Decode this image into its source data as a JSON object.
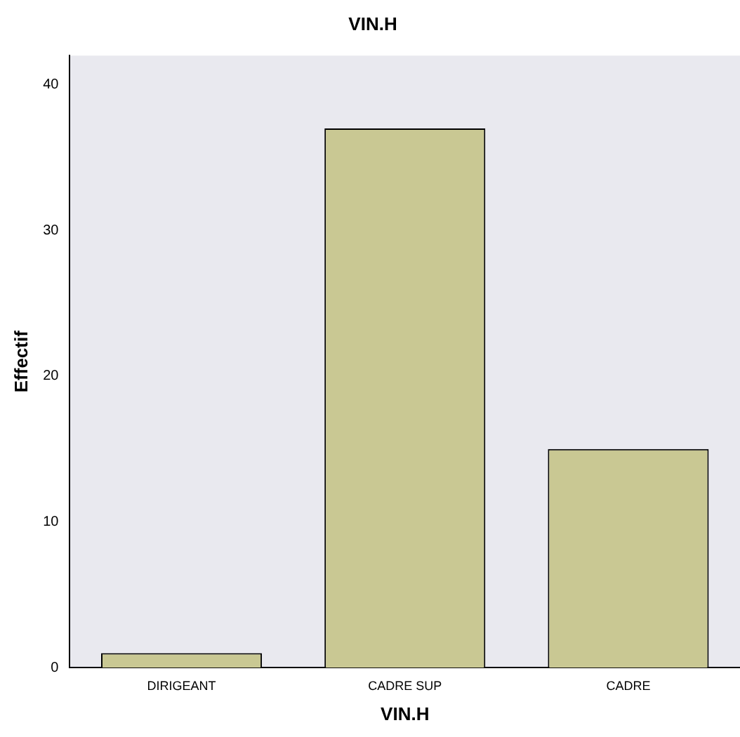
{
  "chart_data": {
    "type": "bar",
    "title": "VIN.H",
    "xlabel": "VIN.H",
    "ylabel": "Effectif",
    "categories": [
      "DIRIGEANT",
      "CADRE SUP",
      "CADRE"
    ],
    "values": [
      1,
      37,
      15
    ],
    "color": "#c9c893",
    "ylim": [
      0,
      42
    ],
    "yticks": [
      0,
      10,
      20,
      30,
      40
    ],
    "grid": false,
    "legend": false
  }
}
